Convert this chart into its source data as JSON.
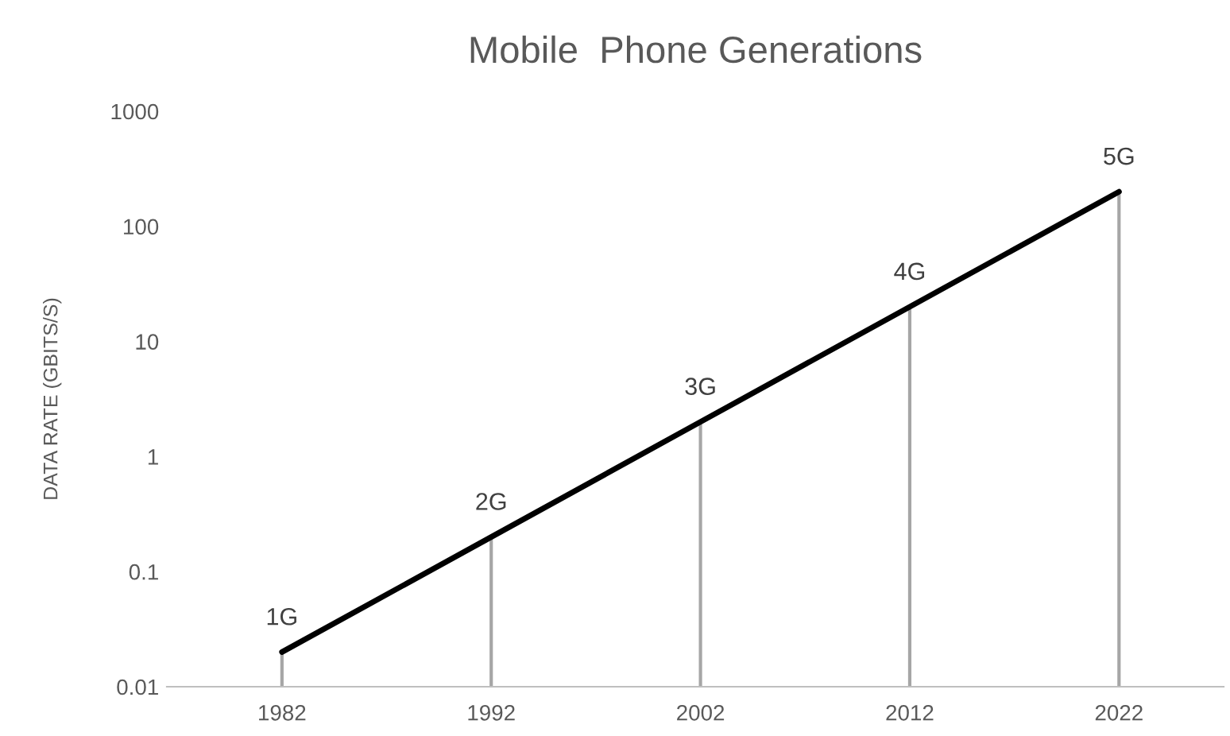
{
  "chart_data": {
    "type": "line",
    "title": "Mobile  Phone Generations",
    "ylabel": "DATA RATE (GBITS/S)",
    "categories": [
      "1982",
      "1992",
      "2002",
      "2012",
      "2022"
    ],
    "series": [
      {
        "color": "#000000",
        "values": [
          0.02,
          0.2,
          2,
          20,
          200
        ]
      }
    ],
    "log": "y",
    "ylim": [
      0.01,
      1000
    ],
    "yticks": [
      0.01,
      0.1,
      1,
      10,
      100,
      1000
    ],
    "grid": "x",
    "marker": "none",
    "line_style": "solid",
    "annotations": [
      {
        "text": "1G",
        "x": "1982",
        "y": 0.02
      },
      {
        "text": "2G",
        "x": "1992",
        "y": 0.2
      },
      {
        "text": "3G",
        "x": "2002",
        "y": 2
      },
      {
        "text": "4G",
        "x": "2012",
        "y": 20
      },
      {
        "text": "5G",
        "x": "2022",
        "y": 200
      }
    ]
  }
}
